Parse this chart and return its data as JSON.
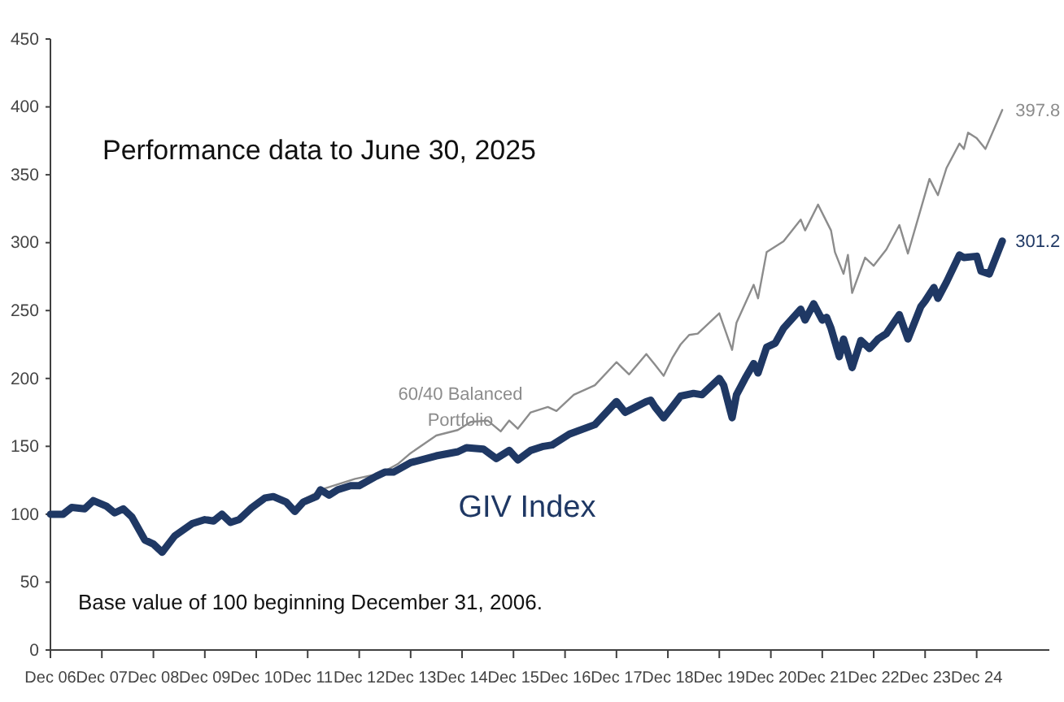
{
  "chart_data": {
    "type": "line",
    "title": "Performance data to June 30, 2025",
    "annotations": [
      "Base value of 100 beginning December 31, 2006."
    ],
    "xlim": [
      "2006-12",
      "2026-05"
    ],
    "xticks": [
      {
        "value": "2006-12",
        "label": "Dec 06"
      },
      {
        "value": "2007-12",
        "label": "Dec 07"
      },
      {
        "value": "2008-12",
        "label": "Dec 08"
      },
      {
        "value": "2009-12",
        "label": "Dec 09"
      },
      {
        "value": "2010-12",
        "label": "Dec 10"
      },
      {
        "value": "2011-12",
        "label": "Dec 11"
      },
      {
        "value": "2012-12",
        "label": "Dec 12"
      },
      {
        "value": "2013-12",
        "label": "Dec 13"
      },
      {
        "value": "2014-12",
        "label": "Dec 14"
      },
      {
        "value": "2015-12",
        "label": "Dec 15"
      },
      {
        "value": "2016-12",
        "label": "Dec 16"
      },
      {
        "value": "2017-12",
        "label": "Dec 17"
      },
      {
        "value": "2018-12",
        "label": "Dec 18"
      },
      {
        "value": "2019-12",
        "label": "Dec 19"
      },
      {
        "value": "2020-12",
        "label": "Dec 20"
      },
      {
        "value": "2021-12",
        "label": "Dec 21"
      },
      {
        "value": "2022-12",
        "label": "Dec 22"
      },
      {
        "value": "2023-12",
        "label": "Dec 23"
      },
      {
        "value": "2024-12",
        "label": "Dec 24"
      }
    ],
    "ylim": [
      0,
      450
    ],
    "yticks": [
      0,
      50,
      100,
      150,
      200,
      250,
      300,
      350,
      400,
      450
    ],
    "grid": false,
    "legend": false,
    "marker": "none",
    "line_style": "solid",
    "series": [
      {
        "name": "60/40 Balanced Portfolio",
        "color": "#8c8c8c",
        "x": [
          "2006-12",
          "2007-03",
          "2007-05",
          "2007-08",
          "2007-10",
          "2008-01",
          "2008-03",
          "2008-05",
          "2008-07",
          "2008-10",
          "2008-12",
          "2009-02",
          "2009-05",
          "2009-09",
          "2009-12",
          "2010-02",
          "2010-04",
          "2010-06",
          "2010-08",
          "2010-11",
          "2011-02",
          "2011-04",
          "2011-07",
          "2011-09",
          "2011-11",
          "2012-04",
          "2012-11",
          "2013-05",
          "2013-09",
          "2013-12",
          "2014-06",
          "2014-11",
          "2015-02",
          "2015-06",
          "2015-09",
          "2015-11",
          "2016-01",
          "2016-04",
          "2016-08",
          "2016-10",
          "2017-02",
          "2017-07",
          "2017-12",
          "2018-03",
          "2018-07",
          "2018-09",
          "2018-11",
          "2019-01",
          "2019-03",
          "2019-05",
          "2019-07",
          "2019-12",
          "2020-03",
          "2020-04",
          "2020-08",
          "2020-09",
          "2020-11",
          "2021-03",
          "2021-07",
          "2021-08",
          "2021-11",
          "2022-02",
          "2022-03",
          "2022-05",
          "2022-06",
          "2022-07",
          "2022-10",
          "2022-12",
          "2023-03",
          "2023-06",
          "2023-08",
          "2023-11",
          "2024-01",
          "2024-03",
          "2024-05",
          "2024-08",
          "2024-09",
          "2024-10",
          "2024-12",
          "2025-02",
          "2025-06"
        ],
        "values": [
          100,
          100,
          105,
          104,
          110,
          106,
          101,
          104,
          98,
          81,
          78,
          72,
          84,
          93,
          96,
          95,
          100,
          94,
          96,
          105,
          112,
          113,
          110,
          103,
          111,
          119,
          126,
          130,
          137,
          145,
          158,
          162,
          168,
          169,
          161,
          169,
          163,
          175,
          179,
          176,
          188,
          195,
          212,
          203,
          218,
          210,
          202,
          215,
          225,
          232,
          233,
          248,
          221,
          241,
          269,
          259,
          293,
          301,
          317,
          309,
          328,
          309,
          293,
          277,
          291,
          263,
          289,
          283,
          295,
          313,
          292,
          325,
          347,
          335,
          355,
          373,
          369,
          381,
          377,
          369,
          397.8
        ],
        "value_labels": [
          null,
          null,
          null,
          null,
          null,
          null,
          null,
          null,
          null,
          null,
          null,
          null,
          null,
          null,
          null,
          null,
          null,
          null,
          null,
          null,
          null,
          null,
          null,
          null,
          null,
          null,
          null,
          null,
          null,
          null,
          null,
          null,
          null,
          null,
          null,
          null,
          null,
          null,
          null,
          null,
          null,
          null,
          null,
          null,
          null,
          null,
          null,
          null,
          null,
          null,
          null,
          null,
          null,
          null,
          null,
          null,
          null,
          null,
          null,
          null,
          null,
          null,
          null,
          null,
          null,
          null,
          null,
          null,
          null,
          null,
          null,
          null,
          null,
          null,
          null,
          null,
          null,
          null,
          null,
          null,
          "397.8"
        ]
      },
      {
        "name": "GIV Index",
        "color": "#1f3864",
        "x": [
          "2006-12",
          "2007-03",
          "2007-05",
          "2007-08",
          "2007-10",
          "2008-01",
          "2008-03",
          "2008-05",
          "2008-07",
          "2008-10",
          "2008-12",
          "2009-02",
          "2009-05",
          "2009-09",
          "2009-12",
          "2010-02",
          "2010-04",
          "2010-06",
          "2010-08",
          "2010-11",
          "2011-02",
          "2011-04",
          "2011-07",
          "2011-09",
          "2011-11",
          "2012-02",
          "2012-03",
          "2012-05",
          "2012-07",
          "2012-10",
          "2012-12",
          "2013-04",
          "2013-06",
          "2013-08",
          "2013-12",
          "2014-06",
          "2014-11",
          "2015-01",
          "2015-05",
          "2015-08",
          "2015-11",
          "2016-01",
          "2016-04",
          "2016-07",
          "2016-09",
          "2017-01",
          "2017-07",
          "2017-12",
          "2018-02",
          "2018-07",
          "2018-08",
          "2018-09",
          "2018-11",
          "2019-01",
          "2019-03",
          "2019-06",
          "2019-08",
          "2019-12",
          "2020-01",
          "2020-03",
          "2020-04",
          "2020-06",
          "2020-08",
          "2020-09",
          "2020-11",
          "2021-01",
          "2021-03",
          "2021-07",
          "2021-08",
          "2021-10",
          "2021-12",
          "2022-01",
          "2022-02",
          "2022-04",
          "2022-05",
          "2022-07",
          "2022-09",
          "2022-11",
          "2023-01",
          "2023-03",
          "2023-06",
          "2023-08",
          "2023-11",
          "2023-12",
          "2024-02",
          "2024-03",
          "2024-05",
          "2024-08",
          "2024-09",
          "2024-12",
          "2025-01",
          "2025-03",
          "2025-06"
        ],
        "values": [
          100,
          100,
          105,
          104,
          110,
          106,
          101,
          104,
          98,
          81,
          78,
          72,
          84,
          93,
          96,
          95,
          100,
          94,
          96,
          105,
          112,
          113,
          109,
          102,
          109,
          113,
          118,
          114,
          118,
          121,
          121,
          128,
          131,
          131,
          138,
          143,
          146,
          149,
          148,
          141,
          147,
          140,
          147,
          150,
          151,
          159,
          166,
          183,
          175,
          183,
          184,
          179,
          171,
          179,
          187,
          189,
          188,
          200,
          195,
          171,
          188,
          200,
          211,
          204,
          223,
          226,
          237,
          251,
          243,
          255,
          243,
          245,
          237,
          216,
          229,
          208,
          228,
          222,
          229,
          233,
          247,
          229,
          253,
          257,
          267,
          259,
          271,
          291,
          289,
          290,
          279,
          277,
          301.2
        ],
        "value_labels": [
          null,
          null,
          null,
          null,
          null,
          null,
          null,
          null,
          null,
          null,
          null,
          null,
          null,
          null,
          null,
          null,
          null,
          null,
          null,
          null,
          null,
          null,
          null,
          null,
          null,
          null,
          null,
          null,
          null,
          null,
          null,
          null,
          null,
          null,
          null,
          null,
          null,
          null,
          null,
          null,
          null,
          null,
          null,
          null,
          null,
          null,
          null,
          null,
          null,
          null,
          null,
          null,
          null,
          null,
          null,
          null,
          null,
          null,
          null,
          null,
          null,
          null,
          null,
          null,
          null,
          null,
          null,
          null,
          null,
          null,
          null,
          null,
          null,
          null,
          null,
          null,
          null,
          null,
          null,
          null,
          null,
          null,
          null,
          null,
          null,
          null,
          null,
          null,
          null,
          null,
          null,
          null,
          "301.2"
        ]
      }
    ]
  }
}
